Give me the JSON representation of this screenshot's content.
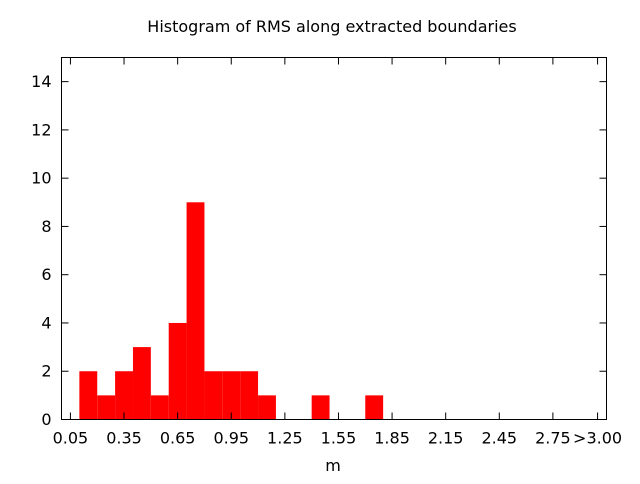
{
  "chart_data": {
    "type": "bar",
    "title": "Histogram of RMS along extracted boundaries",
    "xlabel": "m",
    "ylabel": "",
    "bin_width": 0.1,
    "xlim": [
      0.0,
      3.05
    ],
    "ylim": [
      0,
      15
    ],
    "x_ticks": [
      {
        "value": 0.05,
        "label": "0.05"
      },
      {
        "value": 0.35,
        "label": "0.35"
      },
      {
        "value": 0.65,
        "label": "0.65"
      },
      {
        "value": 0.95,
        "label": "0.95"
      },
      {
        "value": 1.25,
        "label": "1.25"
      },
      {
        "value": 1.55,
        "label": "1.55"
      },
      {
        "value": 1.85,
        "label": "1.85"
      },
      {
        "value": 2.15,
        "label": "2.15"
      },
      {
        "value": 2.45,
        "label": "2.45"
      },
      {
        "value": 2.75,
        "label": "2.75"
      },
      {
        "value": 3.0,
        "label": ">3.00"
      }
    ],
    "y_ticks": [
      0,
      2,
      4,
      6,
      8,
      10,
      12,
      14
    ],
    "bins": [
      {
        "x": 0.15,
        "count": 2
      },
      {
        "x": 0.25,
        "count": 1
      },
      {
        "x": 0.35,
        "count": 2
      },
      {
        "x": 0.45,
        "count": 3
      },
      {
        "x": 0.55,
        "count": 1
      },
      {
        "x": 0.65,
        "count": 4
      },
      {
        "x": 0.75,
        "count": 9
      },
      {
        "x": 0.85,
        "count": 2
      },
      {
        "x": 0.95,
        "count": 2
      },
      {
        "x": 1.05,
        "count": 2
      },
      {
        "x": 1.15,
        "count": 1
      },
      {
        "x": 1.45,
        "count": 1
      },
      {
        "x": 1.75,
        "count": 1
      }
    ],
    "bar_color": "#ff0000",
    "grid": false,
    "legend": "none"
  }
}
